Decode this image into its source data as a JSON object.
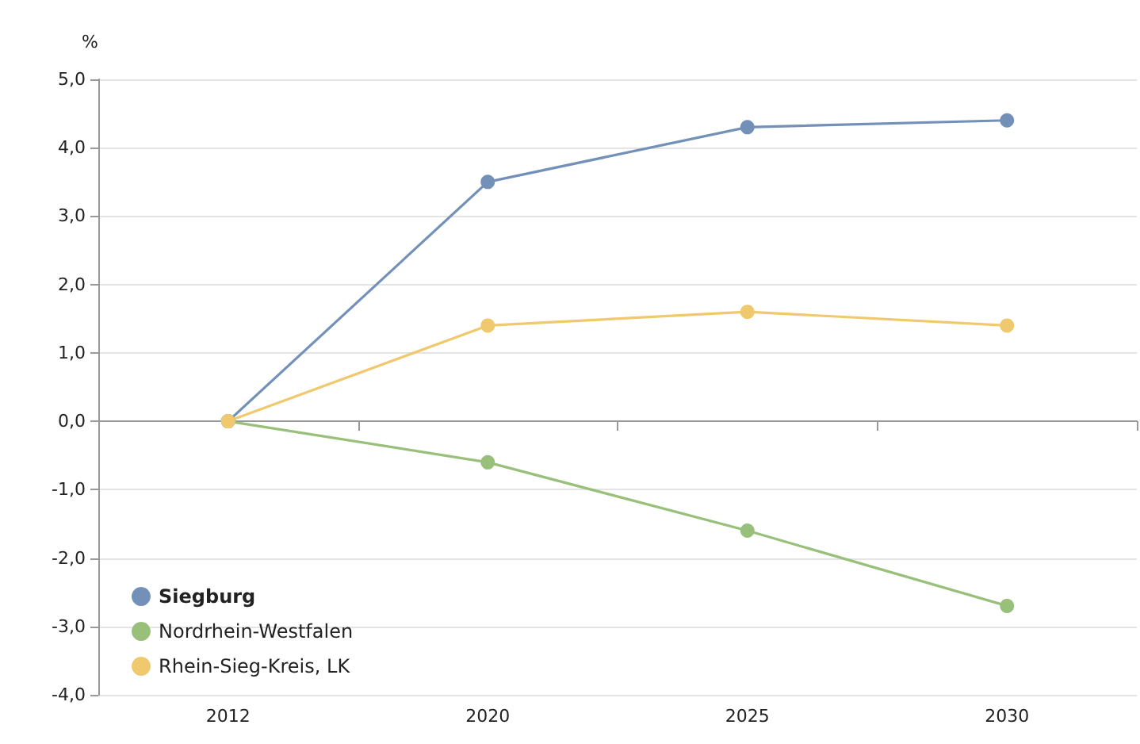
{
  "chart_data": {
    "type": "line",
    "ylabel": "%",
    "categories": [
      "2012",
      "2020",
      "2025",
      "2030"
    ],
    "series": [
      {
        "name": "Siegburg",
        "color": "#7391b8",
        "values": [
          0,
          3.5,
          4.3,
          4.4
        ]
      },
      {
        "name": "Nordrhein-Westfalen",
        "color": "#98c07a",
        "values": [
          0,
          -0.6,
          -1.6,
          -2.7
        ]
      },
      {
        "name": "Rhein-Sieg-Kreis, LK",
        "color": "#f0c96e",
        "values": [
          0,
          1.4,
          1.6,
          1.4
        ]
      }
    ],
    "ylim": [
      -4,
      5
    ],
    "yticks": [
      {
        "value": -4,
        "label": "-4,0"
      },
      {
        "value": -3,
        "label": "-3,0"
      },
      {
        "value": -2,
        "label": "-2,0"
      },
      {
        "value": -1,
        "label": "-1,0"
      },
      {
        "value": 0,
        "label": "0,0"
      },
      {
        "value": 1,
        "label": "1,0"
      },
      {
        "value": 2,
        "label": "2,0"
      },
      {
        "value": 3,
        "label": "3,0"
      },
      {
        "value": 4,
        "label": "4,0"
      },
      {
        "value": 5,
        "label": "5,0"
      }
    ],
    "grid": "y",
    "legend": "bottom left",
    "marker": "circle",
    "line_style": "solid"
  }
}
